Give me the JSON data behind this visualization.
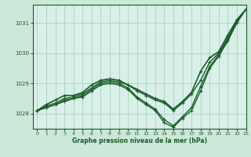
{
  "title": "Graphe pression niveau de la mer (hPa)",
  "background_color": "#cce8d8",
  "plot_bg_color": "#d8f0e8",
  "grid_color": "#a8c8b8",
  "line_color": "#1a5c28",
  "xlim": [
    -0.5,
    23
  ],
  "ylim": [
    1027.5,
    1031.6
  ],
  "yticks": [
    1028,
    1029,
    1030,
    1031
  ],
  "xticks": [
    0,
    1,
    2,
    3,
    4,
    5,
    6,
    7,
    8,
    9,
    10,
    11,
    12,
    13,
    14,
    15,
    16,
    17,
    18,
    19,
    20,
    21,
    22,
    23
  ],
  "series": [
    {
      "data": [
        1028.1,
        1028.25,
        1028.35,
        1028.5,
        1028.55,
        1028.65,
        1028.85,
        1029.05,
        1029.1,
        1029.05,
        1028.95,
        1028.75,
        1028.6,
        1028.45,
        1028.35,
        1028.1,
        1028.35,
        1028.65,
        1029.1,
        1029.7,
        1030.0,
        1030.5,
        1031.1,
        1031.45
      ],
      "linewidth": 1.0,
      "marker": true
    },
    {
      "data": [
        1028.1,
        1028.2,
        1028.3,
        1028.45,
        1028.5,
        1028.6,
        1028.8,
        1029.0,
        1029.05,
        1029.0,
        1028.85,
        1028.55,
        1028.35,
        1028.15,
        1027.8,
        1027.6,
        1027.9,
        1028.2,
        1028.9,
        1029.55,
        1029.95,
        1030.45,
        1031.05,
        1031.45
      ],
      "linewidth": 1.0,
      "marker": true
    },
    {
      "data": [
        1028.1,
        1028.2,
        1028.3,
        1028.4,
        1028.5,
        1028.55,
        1028.75,
        1028.95,
        1029.0,
        1028.95,
        1028.8,
        1028.5,
        1028.3,
        1028.1,
        1027.7,
        1027.55,
        1027.85,
        1028.1,
        1028.75,
        1029.5,
        1029.9,
        1030.4,
        1031.0,
        1031.45
      ],
      "linewidth": 1.0,
      "marker": true
    },
    {
      "data": [
        1028.1,
        1028.3,
        1028.45,
        1028.6,
        1028.6,
        1028.7,
        1028.95,
        1029.1,
        1029.15,
        1029.1,
        1028.95,
        1028.8,
        1028.65,
        1028.5,
        1028.4,
        1028.15,
        1028.4,
        1028.7,
        1029.4,
        1029.85,
        1030.05,
        1030.6,
        1031.1,
        1031.45
      ],
      "linewidth": 1.2,
      "marker": true
    }
  ]
}
